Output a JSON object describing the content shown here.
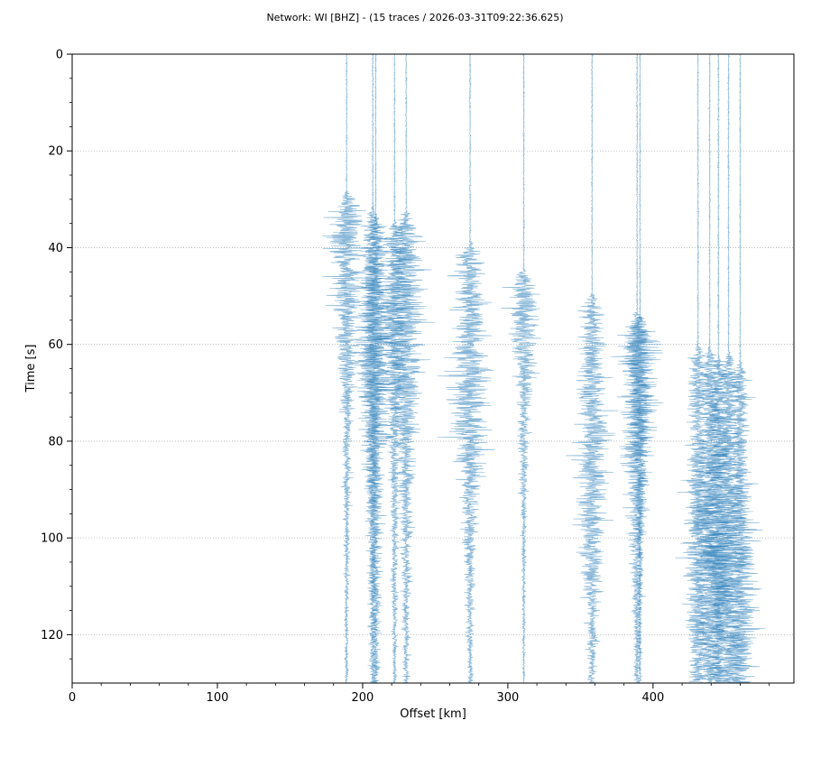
{
  "chart_data": {
    "type": "line",
    "title": "Network: WI [BHZ] - (15 traces / 2026-03-31T09:22:36.625)",
    "xlabel": "Offset [km]",
    "ylabel": "Time [s]",
    "xlim": [
      0,
      497
    ],
    "ylim": [
      130,
      0
    ],
    "y_inverted": true,
    "x_ticks": [
      "0",
      "100",
      "200",
      "300",
      "400"
    ],
    "y_ticks": [
      "0",
      "20",
      "40",
      "60",
      "80",
      "100",
      "120"
    ],
    "grid": {
      "horizontal": true,
      "vertical": false,
      "style": "dotted"
    },
    "trace_color": "#1f77b4",
    "trace_alpha": 0.55,
    "traces": [
      {
        "offset": 189,
        "onset": 28,
        "peak_amp": 14,
        "peak_time": 45,
        "decay": 0.022
      },
      {
        "offset": 207,
        "onset": 31,
        "peak_amp": 11,
        "peak_time": 60,
        "decay": 0.012
      },
      {
        "offset": 209,
        "onset": 33,
        "peak_amp": 14,
        "peak_time": 65,
        "decay": 0.016
      },
      {
        "offset": 222,
        "onset": 34,
        "peak_amp": 12,
        "peak_time": 55,
        "decay": 0.018
      },
      {
        "offset": 230,
        "onset": 32,
        "peak_amp": 16,
        "peak_time": 60,
        "decay": 0.018
      },
      {
        "offset": 274,
        "onset": 38,
        "peak_amp": 16,
        "peak_time": 72,
        "decay": 0.025
      },
      {
        "offset": 311,
        "onset": 44,
        "peak_amp": 13,
        "peak_time": 52,
        "decay": 0.028
      },
      {
        "offset": 358,
        "onset": 49,
        "peak_amp": 14,
        "peak_time": 88,
        "decay": 0.022
      },
      {
        "offset": 389,
        "onset": 53,
        "peak_amp": 14,
        "peak_time": 75,
        "decay": 0.02
      },
      {
        "offset": 391,
        "onset": 54,
        "peak_amp": 16,
        "peak_time": 60,
        "decay": 0.03
      },
      {
        "offset": 431,
        "onset": 59,
        "peak_amp": 12,
        "peak_time": 105,
        "decay": 0.012
      },
      {
        "offset": 439,
        "onset": 60,
        "peak_amp": 14,
        "peak_time": 110,
        "decay": 0.012
      },
      {
        "offset": 445,
        "onset": 62,
        "peak_amp": 12,
        "peak_time": 100,
        "decay": 0.012
      },
      {
        "offset": 452,
        "onset": 61,
        "peak_amp": 15,
        "peak_time": 112,
        "decay": 0.012
      },
      {
        "offset": 460,
        "onset": 63,
        "peak_amp": 13,
        "peak_time": 120,
        "decay": 0.012
      }
    ]
  }
}
